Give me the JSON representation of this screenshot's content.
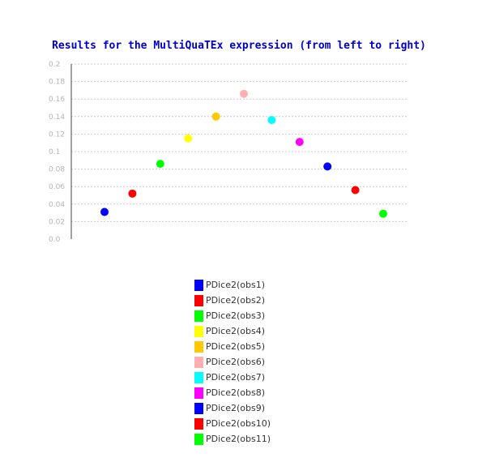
{
  "chart_data": {
    "type": "scatter",
    "title": "Results for the MultiQuaTEx expression (from left to right)",
    "xlabel": "",
    "ylabel": "",
    "ylim": [
      0.0,
      0.2
    ],
    "yticks": [
      "0.0",
      "0.02",
      "0.04",
      "0.06",
      "0.08",
      "0.1",
      "0.12",
      "0.14",
      "0.16",
      "0.18",
      "0.2"
    ],
    "grid": true,
    "legend_position": "bottom",
    "series": [
      {
        "name": "PDice2(obs1)",
        "x": 1,
        "y": 0.031,
        "color": "#0000ff"
      },
      {
        "name": "PDice2(obs2)",
        "x": 2,
        "y": 0.052,
        "color": "#ff0000"
      },
      {
        "name": "PDice2(obs3)",
        "x": 3,
        "y": 0.086,
        "color": "#00ff00"
      },
      {
        "name": "PDice2(obs4)",
        "x": 4,
        "y": 0.115,
        "color": "#ffff00"
      },
      {
        "name": "PDice2(obs5)",
        "x": 5,
        "y": 0.14,
        "color": "#ffc800"
      },
      {
        "name": "PDice2(obs6)",
        "x": 6,
        "y": 0.166,
        "color": "#ffafaf"
      },
      {
        "name": "PDice2(obs7)",
        "x": 7,
        "y": 0.136,
        "color": "#00ffff"
      },
      {
        "name": "PDice2(obs8)",
        "x": 8,
        "y": 0.111,
        "color": "#ff00ff"
      },
      {
        "name": "PDice2(obs9)",
        "x": 9,
        "y": 0.083,
        "color": "#0000ff"
      },
      {
        "name": "PDice2(obs10)",
        "x": 10,
        "y": 0.056,
        "color": "#ff0000"
      },
      {
        "name": "PDice2(obs11)",
        "x": 11,
        "y": 0.029,
        "color": "#00ff00"
      }
    ]
  }
}
